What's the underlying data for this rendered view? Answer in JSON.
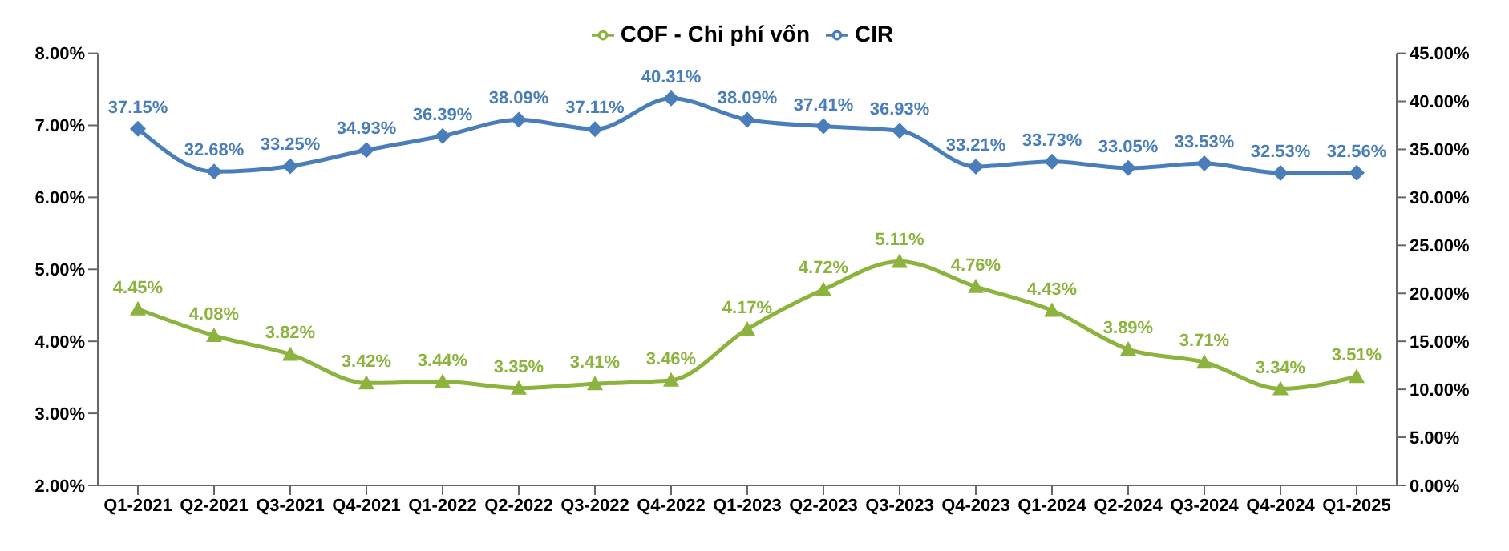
{
  "chart_data": {
    "type": "line",
    "categories": [
      "Q1-2021",
      "Q2-2021",
      "Q3-2021",
      "Q4-2021",
      "Q1-2022",
      "Q2-2022",
      "Q3-2022",
      "Q4-2022",
      "Q1-2023",
      "Q2-2023",
      "Q3-2023",
      "Q4-2023",
      "Q1-2024",
      "Q2-2024",
      "Q3-2024",
      "Q4-2024",
      "Q1-2025"
    ],
    "series": [
      {
        "name": "COF - Chi phí vốn",
        "color": "#8db33f",
        "marker": "triangle",
        "values": [
          4.45,
          4.08,
          3.82,
          3.42,
          3.44,
          3.35,
          3.41,
          3.46,
          4.17,
          4.72,
          5.11,
          4.76,
          4.43,
          3.89,
          3.71,
          3.34,
          3.51
        ],
        "value_labels": [
          "4.45%",
          "4.08%",
          "3.82%",
          "3.42%",
          "3.44%",
          "3.35%",
          "3.41%",
          "3.46%",
          "4.17%",
          "4.72%",
          "5.11%",
          "4.76%",
          "4.43%",
          "3.89%",
          "3.71%",
          "3.34%",
          "3.51%"
        ]
      },
      {
        "name": "CIR",
        "color": "#4a7ebb",
        "marker": "diamond",
        "axis": "y2",
        "values": [
          37.15,
          32.68,
          33.25,
          34.93,
          36.39,
          38.09,
          37.11,
          40.31,
          38.09,
          37.41,
          36.93,
          33.21,
          33.73,
          33.05,
          33.53,
          32.53,
          32.56
        ],
        "value_labels": [
          "37.15%",
          "32.68%",
          "33.25%",
          "34.93%",
          "36.39%",
          "38.09%",
          "37.11%",
          "40.31%",
          "38.09%",
          "37.41%",
          "36.93%",
          "33.21%",
          "33.73%",
          "33.05%",
          "33.53%",
          "32.53%",
          "32.56%"
        ]
      }
    ],
    "ylim": [
      2,
      8
    ],
    "yticks": [
      {
        "value": 2,
        "label": "2.00%"
      },
      {
        "value": 3,
        "label": "3.00%"
      },
      {
        "value": 4,
        "label": "4.00%"
      },
      {
        "value": 5,
        "label": "5.00%"
      },
      {
        "value": 6,
        "label": "6.00%"
      },
      {
        "value": 7,
        "label": "7.00%"
      },
      {
        "value": 8,
        "label": "8.00%"
      }
    ],
    "y2lim": [
      0,
      45
    ],
    "y2ticks": [
      {
        "value": 0,
        "label": "0.00%"
      },
      {
        "value": 5,
        "label": "5.00%"
      },
      {
        "value": 10,
        "label": "10.00%"
      },
      {
        "value": 15,
        "label": "15.00%"
      },
      {
        "value": 20,
        "label": "20.00%"
      },
      {
        "value": 25,
        "label": "25.00%"
      },
      {
        "value": 30,
        "label": "30.00%"
      },
      {
        "value": 35,
        "label": "35.00%"
      },
      {
        "value": 40,
        "label": "40.00%"
      },
      {
        "value": 45,
        "label": "45.00%"
      }
    ],
    "legend": "top",
    "grid": false
  }
}
